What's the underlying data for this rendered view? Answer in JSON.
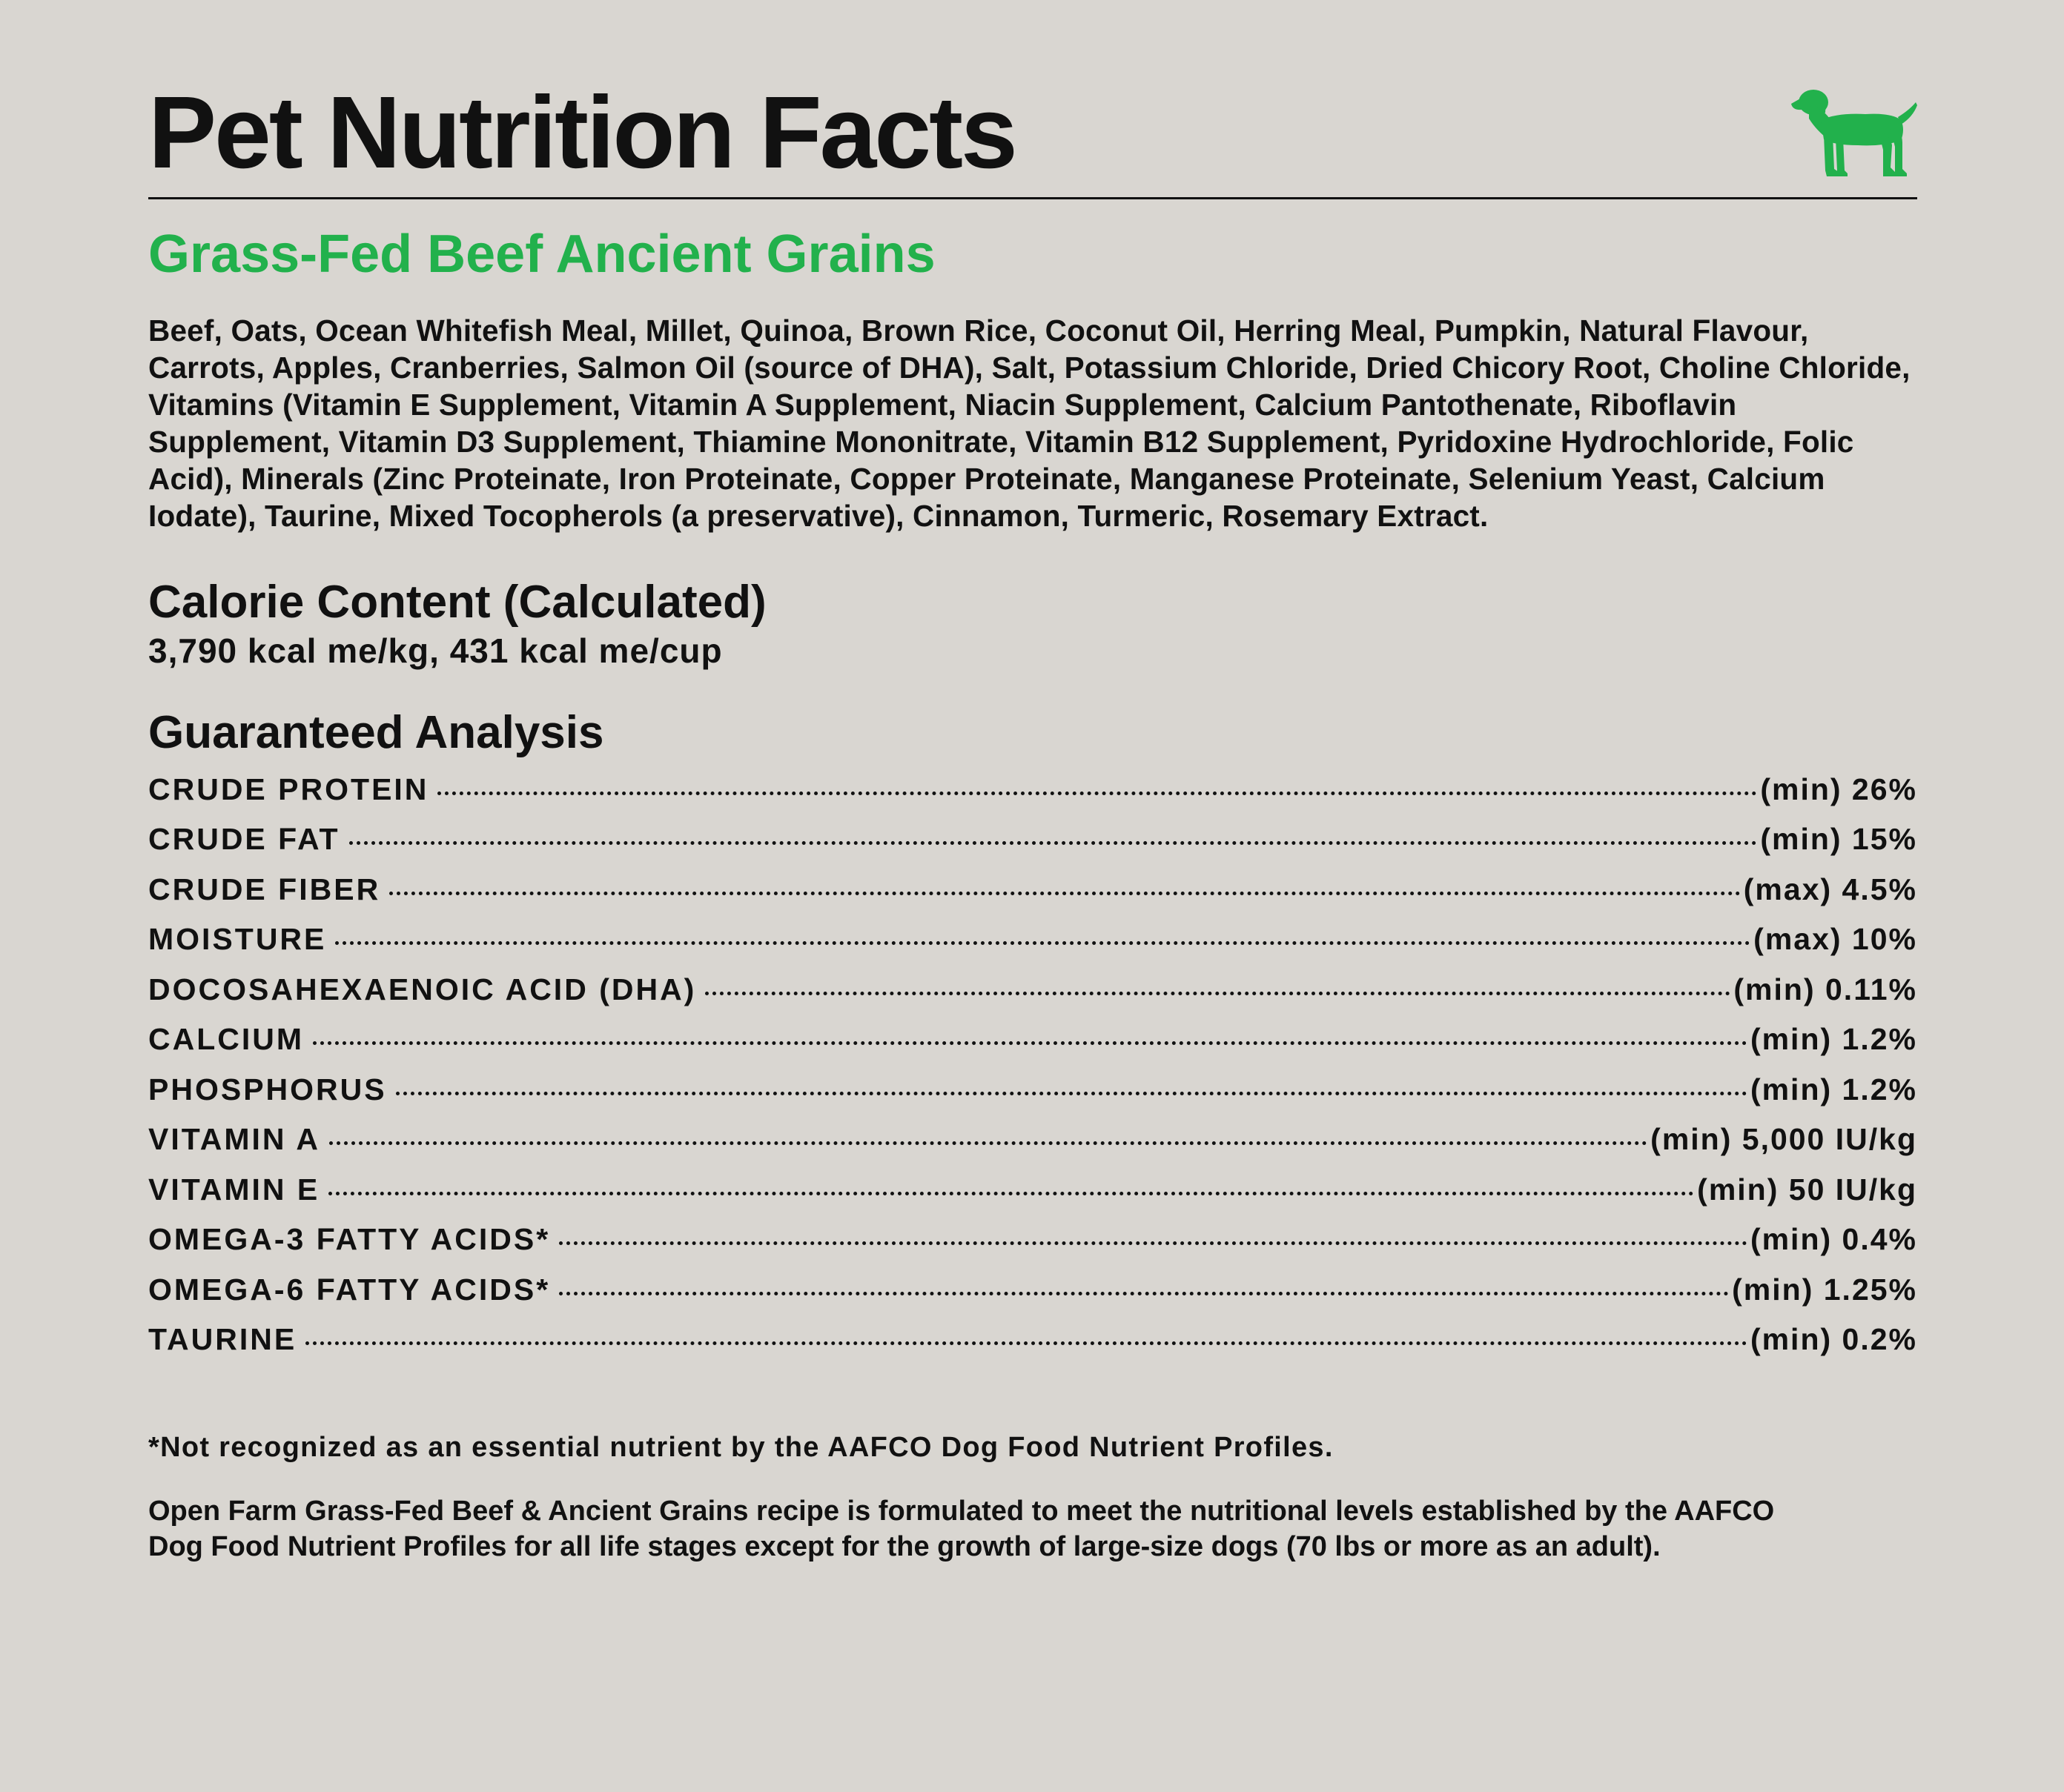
{
  "header": {
    "title": "Pet Nutrition Facts",
    "icon": "dog-icon",
    "icon_color": "#22b14c"
  },
  "product": {
    "name": "Grass-Fed Beef Ancient Grains",
    "accent_color": "#22b14c",
    "ingredients": "Beef, Oats, Ocean Whitefish Meal, Millet, Quinoa, Brown Rice, Coconut Oil, Herring Meal, Pumpkin, Natural Flavour, Carrots, Apples, Cranberries, Salmon Oil (source of DHA), Salt, Potassium Chloride, Dried Chicory Root, Choline Chloride, Vitamins (Vitamin E Supplement, Vitamin A Supplement, Niacin Supplement, Calcium Pantothenate, Riboflavin Supplement, Vitamin D3 Supplement, Thiamine Mononitrate, Vitamin B12 Supplement, Pyridoxine Hydrochloride, Folic Acid), Minerals (Zinc Proteinate, Iron Proteinate, Copper Proteinate, Manganese Proteinate, Selenium Yeast, Calcium Iodate), Taurine, Mixed Tocopherols (a preservative), Cinnamon, Turmeric, Rosemary Extract."
  },
  "calorie": {
    "heading": "Calorie Content (Calculated)",
    "value": "3,790 kcal me/kg, 431 kcal me/cup"
  },
  "analysis": {
    "heading": "Guaranteed Analysis",
    "rows": [
      {
        "name": "CRUDE PROTEIN",
        "value": "(min) 26%"
      },
      {
        "name": "CRUDE FAT",
        "value": "(min) 15%"
      },
      {
        "name": "CRUDE FIBER",
        "value": "(max) 4.5%"
      },
      {
        "name": "MOISTURE",
        "value": "(max) 10%"
      },
      {
        "name": "DOCOSAHEXAENOIC ACID (DHA)",
        "value": "(min) 0.11%"
      },
      {
        "name": "CALCIUM",
        "value": "(min) 1.2%"
      },
      {
        "name": "PHOSPHORUS",
        "value": "(min) 1.2%"
      },
      {
        "name": "VITAMIN A",
        "value": "(min) 5,000 IU/kg"
      },
      {
        "name": "VITAMIN E",
        "value": "(min) 50 IU/kg"
      },
      {
        "name": "OMEGA-3 FATTY ACIDS*",
        "value": "(min) 0.4%"
      },
      {
        "name": "OMEGA-6 FATTY ACIDS*",
        "value": "(min) 1.25%"
      },
      {
        "name": "TAURINE",
        "value": "(min) 0.2%"
      }
    ]
  },
  "footnote": "*Not recognized as an essential nutrient by the AAFCO Dog Food Nutrient Profiles.",
  "statement": "Open Farm Grass-Fed Beef & Ancient Grains recipe is formulated to meet the nutritional levels established by the AAFCO Dog Food Nutrient Profiles for all life stages except for the growth of large-size dogs (70 lbs or more as an adult)."
}
